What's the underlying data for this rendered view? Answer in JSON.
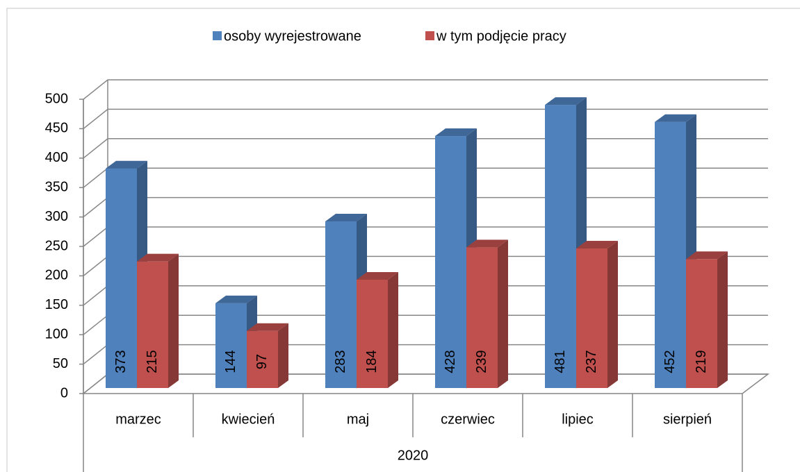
{
  "chart_data": {
    "type": "bar3d",
    "categories": [
      "marzec",
      "kwiecień",
      "maj",
      "czerwiec",
      "lipiec",
      "sierpień"
    ],
    "group_label": "2020",
    "series": [
      {
        "name": "osoby wyrejestrowane",
        "color": "#4f81bd",
        "values": [
          373,
          144,
          283,
          428,
          481,
          452
        ]
      },
      {
        "name": "w tym podjęcie pracy",
        "color": "#c0504d",
        "values": [
          215,
          97,
          184,
          239,
          237,
          219
        ]
      }
    ],
    "ylim": [
      0,
      500
    ],
    "yticks": [
      0,
      50,
      100,
      150,
      200,
      250,
      300,
      350,
      400,
      450,
      500
    ],
    "grid": true,
    "legend": "top"
  }
}
